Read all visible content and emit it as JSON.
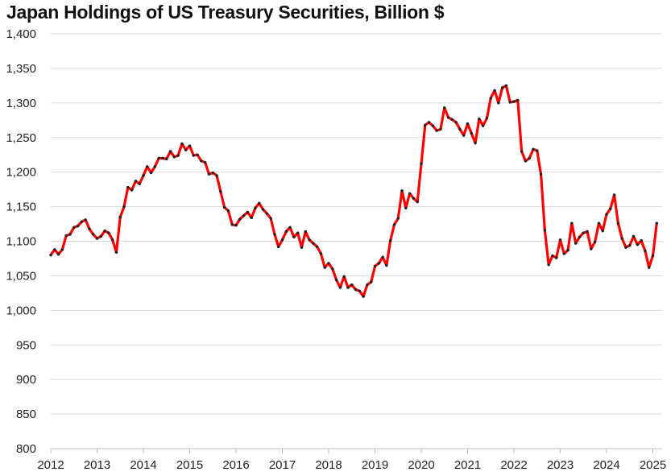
{
  "chart_data": {
    "type": "line",
    "title": "Japan Holdings of US Treasury Securities, Billion $",
    "xlabel": "",
    "ylabel": "",
    "ylim": [
      800,
      1400
    ],
    "xlim": [
      2012,
      2025.2
    ],
    "y_ticks": [
      800,
      850,
      900,
      950,
      1000,
      1050,
      1100,
      1150,
      1200,
      1250,
      1300,
      1350,
      1400
    ],
    "y_tick_labels": [
      "800",
      "850",
      "900",
      "950",
      "1,000",
      "1,050",
      "1,100",
      "1,150",
      "1,200",
      "1,250",
      "1,300",
      "1,350",
      "1,400"
    ],
    "x_ticks": [
      2012,
      2013,
      2014,
      2015,
      2016,
      2017,
      2018,
      2019,
      2020,
      2021,
      2022,
      2023,
      2024,
      2025
    ],
    "x_tick_labels": [
      "2012",
      "2013",
      "2014",
      "2015",
      "2016",
      "2017",
      "2018",
      "2019",
      "2020",
      "2021",
      "2022",
      "2023",
      "2024",
      "2025"
    ],
    "grid": true,
    "line_color": "#ff0000",
    "marker_color": "#222222",
    "series": [
      {
        "name": "Japan Holdings of US Treasury Securities",
        "x_start": 2012.0,
        "x_step": 0.083333,
        "values": [
          1080,
          1088,
          1081,
          1088,
          1108,
          1110,
          1120,
          1122,
          1128,
          1131,
          1118,
          1110,
          1104,
          1107,
          1115,
          1112,
          1102,
          1084,
          1135,
          1150,
          1178,
          1174,
          1187,
          1183,
          1195,
          1208,
          1199,
          1208,
          1220,
          1220,
          1219,
          1230,
          1222,
          1224,
          1241,
          1232,
          1238,
          1224,
          1225,
          1216,
          1214,
          1197,
          1199,
          1195,
          1172,
          1149,
          1144,
          1124,
          1123,
          1132,
          1137,
          1142,
          1134,
          1148,
          1155,
          1146,
          1140,
          1133,
          1110,
          1092,
          1102,
          1114,
          1120,
          1106,
          1112,
          1091,
          1114,
          1102,
          1097,
          1092,
          1082,
          1062,
          1068,
          1060,
          1044,
          1033,
          1049,
          1033,
          1037,
          1030,
          1028,
          1020,
          1037,
          1041,
          1064,
          1068,
          1077,
          1065,
          1101,
          1124,
          1133,
          1173,
          1148,
          1169,
          1162,
          1157,
          1212,
          1268,
          1272,
          1267,
          1260,
          1262,
          1293,
          1279,
          1276,
          1272,
          1262,
          1253,
          1270,
          1256,
          1242,
          1277,
          1267,
          1278,
          1307,
          1318,
          1300,
          1322,
          1325,
          1301,
          1302,
          1304,
          1230,
          1216,
          1220,
          1233,
          1231,
          1197,
          1116,
          1066,
          1079,
          1076,
          1102,
          1082,
          1087,
          1126,
          1097,
          1106,
          1112,
          1114,
          1089,
          1099,
          1126,
          1115,
          1139,
          1147,
          1167,
          1126,
          1104,
          1091,
          1094,
          1107,
          1095,
          1101,
          1086,
          1062,
          1079,
          1126
        ]
      }
    ]
  }
}
